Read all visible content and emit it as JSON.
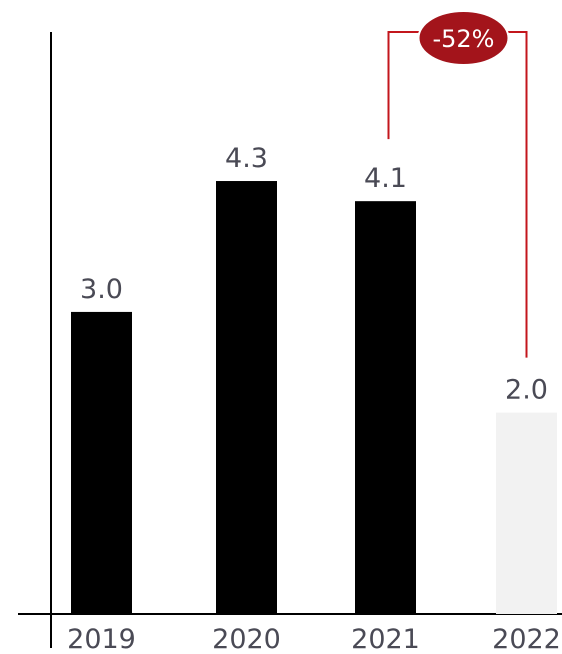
{
  "chart_data": {
    "type": "bar",
    "categories": [
      "2019",
      "2020",
      "2021",
      "2022"
    ],
    "values": [
      3.0,
      4.3,
      4.1,
      2.0
    ],
    "value_labels": [
      "3.0",
      "4.3",
      "4.1",
      "2.0"
    ],
    "ylim": [
      0,
      5.78
    ],
    "grid": false,
    "legend": "none",
    "bar_colors": [
      "#000000",
      "#000000",
      "#000000",
      "#f2f2f2"
    ],
    "annotation": {
      "label": "-52%",
      "from": "2021",
      "to": "2022",
      "color": "#c3161c",
      "fill": "#a3141b"
    }
  }
}
